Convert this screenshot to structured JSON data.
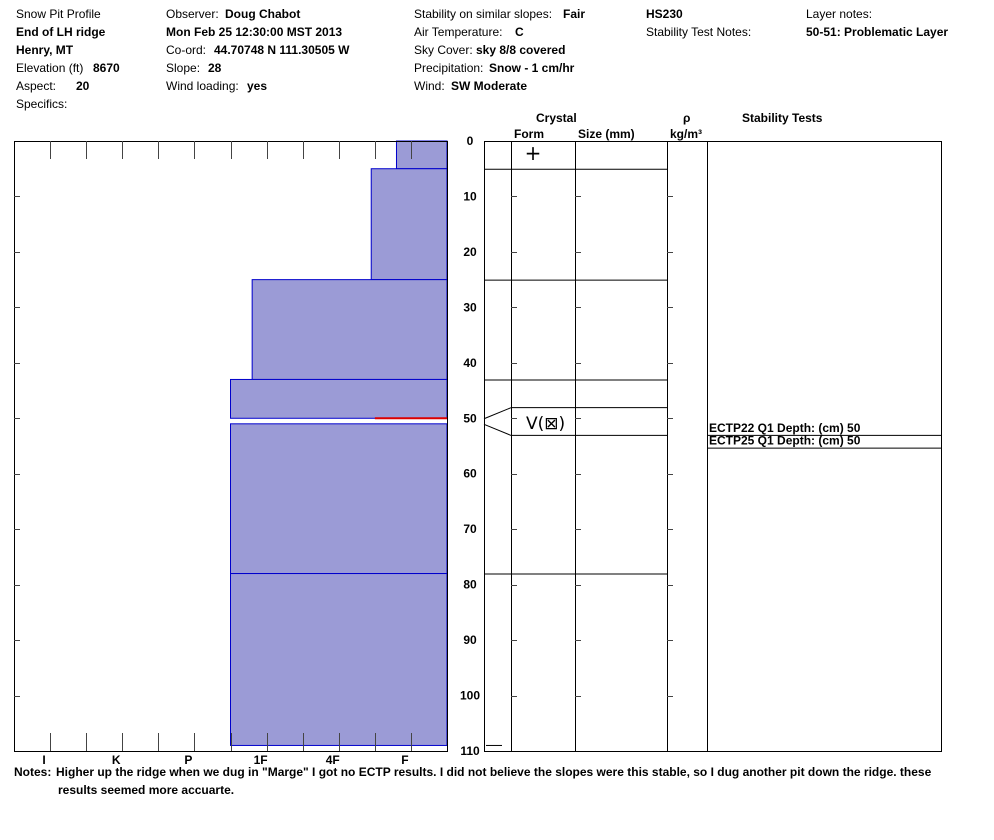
{
  "header": {
    "col1": {
      "title": "Snow Pit Profile",
      "location": "End of LH ridge",
      "region": "Henry, MT",
      "elevation_label": "Elevation (ft)",
      "elevation_value": "8670",
      "aspect_label": "Aspect:",
      "aspect_value": "20",
      "specifics_label": "Specifics:"
    },
    "col2": {
      "observer_label": "Observer:",
      "observer_value": "Doug Chabot",
      "date": "Mon Feb 25 12:30:00 MST 2013",
      "coord_label": "Co-ord:",
      "coord_value": "44.70748 N 111.30505 W",
      "slope_label": "Slope:",
      "slope_value": "28",
      "wind_loading_label": "Wind loading:",
      "wind_loading_value": "yes"
    },
    "col3": {
      "stability_label": "Stability on similar slopes:",
      "stability_value": "Fair",
      "air_temp_label": "Air Temperature:",
      "air_temp_value": "C",
      "sky_label": "Sky Cover:",
      "sky_value": "sky 8/8 covered",
      "precip_label": "Precipitation:",
      "precip_value": "Snow - 1 cm/hr",
      "wind_label": "Wind:",
      "wind_value": "SW Moderate"
    },
    "col4": {
      "hs": "HS230",
      "stability_notes_label": "Stability Test Notes:"
    },
    "col5": {
      "layer_notes_label": "Layer notes:",
      "layer_notes_value": "50-51: Problematic Layer"
    }
  },
  "columns": {
    "crystal": "Crystal",
    "form": "Form",
    "size": "Size (mm)",
    "rho": "ρ",
    "density_unit": "kg/m³",
    "stability_tests": "Stability Tests"
  },
  "notes": {
    "label": "Notes:",
    "line1": "Higher up the ridge when we dug in \"Marge\" I got no ECTP results.  I did not believe the slopes were this stable, so I dug another pit down the ridge.  these",
    "line2": "results seemed more accuarte."
  },
  "colors": {
    "layer_fill": "#9b9bd6",
    "layer_edge": "#0000cc",
    "weak_layer": "#dd0000",
    "grid": "#000000"
  },
  "chart_data": {
    "type": "bar",
    "orientation": "horizontal",
    "depth_axis": {
      "min": 0,
      "max": 110,
      "ticks": [
        0,
        10,
        20,
        30,
        40,
        50,
        60,
        70,
        80,
        90,
        100,
        110
      ],
      "direction": "down"
    },
    "hardness_axis": {
      "scale_labels": [
        "I",
        "K",
        "P",
        "1F",
        "4F",
        "F"
      ],
      "full_scale": 12
    },
    "layers": [
      {
        "top": 0,
        "bottom": 5,
        "hardness": 1.4
      },
      {
        "top": 5,
        "bottom": 25,
        "hardness": 2.1
      },
      {
        "top": 25,
        "bottom": 43,
        "hardness": 5.4
      },
      {
        "top": 43,
        "bottom": 50,
        "hardness": 6.0
      },
      {
        "top": 51,
        "bottom": 78,
        "hardness": 6.0
      },
      {
        "top": 78,
        "bottom": 109,
        "hardness": 6.0
      }
    ],
    "weak_layer": {
      "depth": 50,
      "hardness": 2.0
    },
    "crystal_boundaries": [
      5,
      25,
      43,
      48,
      53,
      78
    ],
    "crystal_forms": [
      {
        "depth": 2,
        "symbol": "+"
      },
      {
        "depth": 50.5,
        "symbol": "V(⊠)"
      }
    ],
    "stability_tests": [
      {
        "depth": 50,
        "text": "ECTP22 Q1 Depth: (cm) 50",
        "line_depth": 53
      },
      {
        "depth": 52,
        "text": "ECTP25 Q1 Depth: (cm) 50",
        "line_depth": 55.3
      }
    ]
  }
}
